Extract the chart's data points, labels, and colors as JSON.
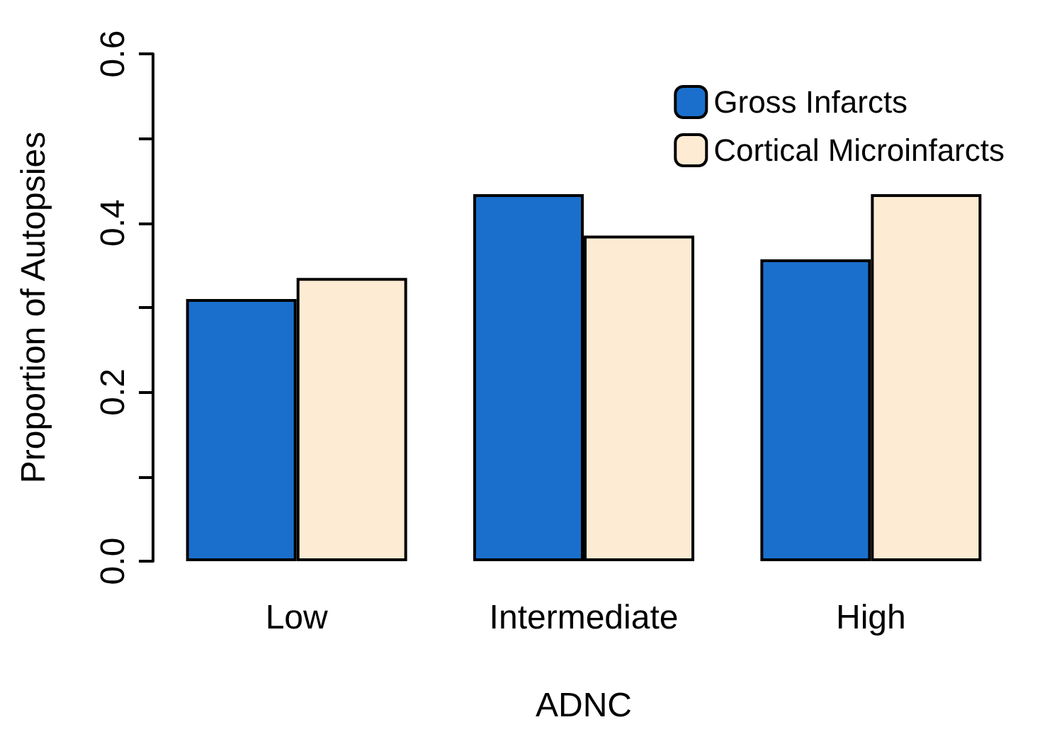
{
  "chart_data": {
    "type": "bar",
    "xlabel": "ADNC",
    "ylabel": "Proportion of Autopsies",
    "categories": [
      "Low",
      "Intermediate",
      "High"
    ],
    "series": [
      {
        "name": "Gross Infarcts",
        "color": "#1a6fcc",
        "values": [
          0.31,
          0.434,
          0.357
        ]
      },
      {
        "name": "Cortical Microinfarcts",
        "color": "#fdebd3",
        "values": [
          0.335,
          0.385,
          0.434
        ]
      }
    ],
    "ylim": [
      0,
      0.6
    ],
    "yticks": [
      {
        "value": 0,
        "label": "0.0"
      },
      {
        "value": 0.1,
        "label": null
      },
      {
        "value": 0.2,
        "label": "0.2"
      },
      {
        "value": 0.3,
        "label": null
      },
      {
        "value": 0.4,
        "label": "0.4"
      },
      {
        "value": 0.5,
        "label": null
      },
      {
        "value": 0.6,
        "label": "0.6"
      }
    ],
    "grid": false,
    "legend": "top right"
  }
}
